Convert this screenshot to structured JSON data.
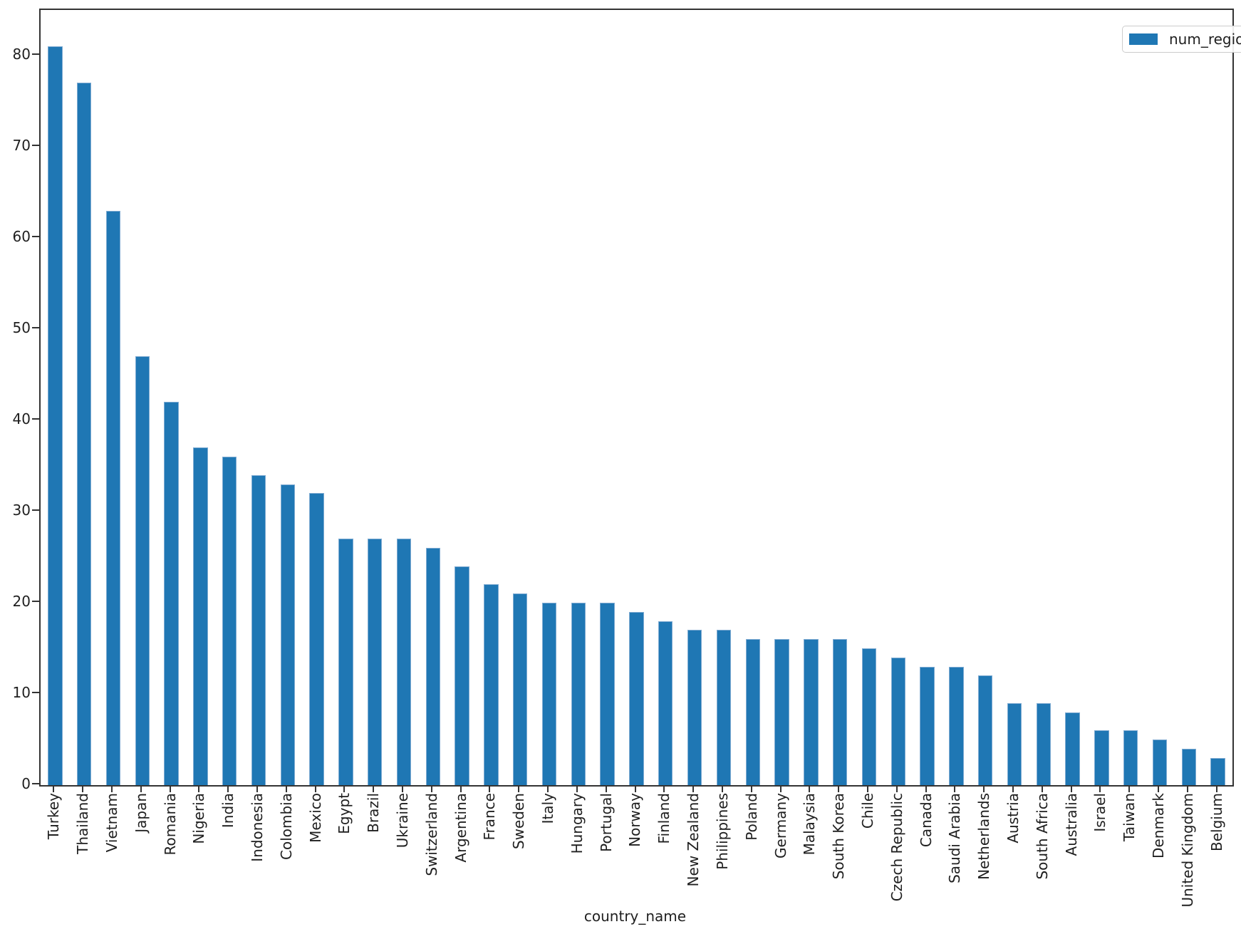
{
  "chart_data": {
    "type": "bar",
    "title": "",
    "xlabel": "country_name",
    "ylabel": "",
    "legend_label": "num_regions",
    "legend_position": "upper right",
    "grid": false,
    "bar_color": "#1f77b4",
    "bar_edge_color": "#7fabd2",
    "axis_color": "#333333",
    "text_color": "#1f1f1f",
    "ylim": [
      0,
      85
    ],
    "yticks": [
      0,
      10,
      20,
      30,
      40,
      50,
      60,
      70,
      80
    ],
    "categories": [
      "Turkey",
      "Thailand",
      "Vietnam",
      "Japan",
      "Romania",
      "Nigeria",
      "India",
      "Indonesia",
      "Colombia",
      "Mexico",
      "Egypt",
      "Brazil",
      "Ukraine",
      "Switzerland",
      "Argentina",
      "France",
      "Sweden",
      "Italy",
      "Hungary",
      "Portugal",
      "Norway",
      "Finland",
      "New Zealand",
      "Philippines",
      "Poland",
      "Germany",
      "Malaysia",
      "South Korea",
      "Chile",
      "Czech Republic",
      "Canada",
      "Saudi Arabia",
      "Netherlands",
      "Austria",
      "South Africa",
      "Australia",
      "Israel",
      "Taiwan",
      "Denmark",
      "United Kingdom",
      "Belgium"
    ],
    "values": [
      81,
      77,
      63,
      47,
      42,
      37,
      36,
      34,
      33,
      32,
      27,
      27,
      27,
      26,
      24,
      22,
      21,
      20,
      20,
      20,
      19,
      18,
      17,
      17,
      16,
      16,
      16,
      16,
      15,
      14,
      13,
      13,
      12,
      9,
      9,
      8,
      6,
      6,
      5,
      4,
      3
    ]
  }
}
